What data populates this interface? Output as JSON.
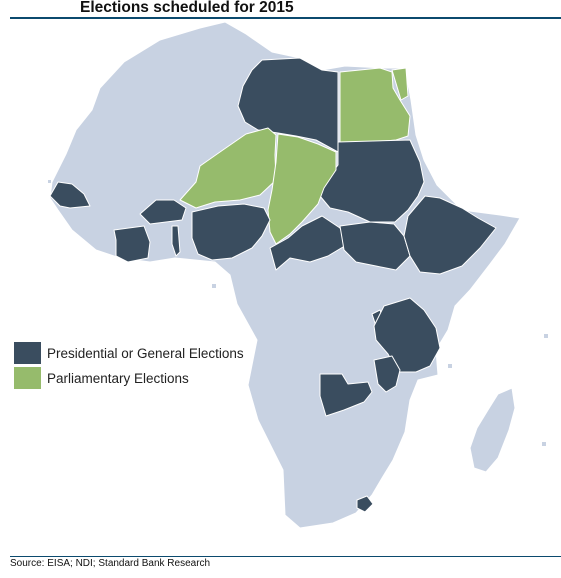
{
  "title": "Elections scheduled for 2015",
  "source": "Source: EISA; NDI; Standard Bank Research",
  "colors": {
    "presidential": "#3a4d5f",
    "parliamentary": "#96bb6c",
    "other_country": "#c8d2e2",
    "border": "#ffffff",
    "rule": "#0b4a6e"
  },
  "legend": [
    {
      "key": "presidential",
      "label": "Presidential or General Elections",
      "color": "#3a4d5f"
    },
    {
      "key": "parliamentary",
      "label": "Parliamentary Elections",
      "color": "#96bb6c"
    }
  ],
  "regions": [
    {
      "name": "base-continent",
      "category": "other"
    },
    {
      "name": "madagascar",
      "category": "other"
    },
    {
      "name": "libya",
      "category": "presidential"
    },
    {
      "name": "egypt",
      "category": "parliamentary"
    },
    {
      "name": "sudan",
      "category": "presidential"
    },
    {
      "name": "niger",
      "category": "parliamentary"
    },
    {
      "name": "chad",
      "category": "parliamentary"
    },
    {
      "name": "senegal-gambia",
      "category": "presidential"
    },
    {
      "name": "burkina-faso",
      "category": "presidential"
    },
    {
      "name": "cote-divoire",
      "category": "presidential"
    },
    {
      "name": "togo",
      "category": "presidential"
    },
    {
      "name": "nigeria",
      "category": "presidential"
    },
    {
      "name": "central-african-republic",
      "category": "presidential"
    },
    {
      "name": "south-sudan",
      "category": "presidential"
    },
    {
      "name": "ethiopia",
      "category": "presidential"
    },
    {
      "name": "burundi",
      "category": "presidential"
    },
    {
      "name": "tanzania",
      "category": "presidential"
    },
    {
      "name": "zambia",
      "category": "presidential"
    },
    {
      "name": "malawi",
      "category": "presidential"
    },
    {
      "name": "lesotho",
      "category": "presidential"
    }
  ]
}
